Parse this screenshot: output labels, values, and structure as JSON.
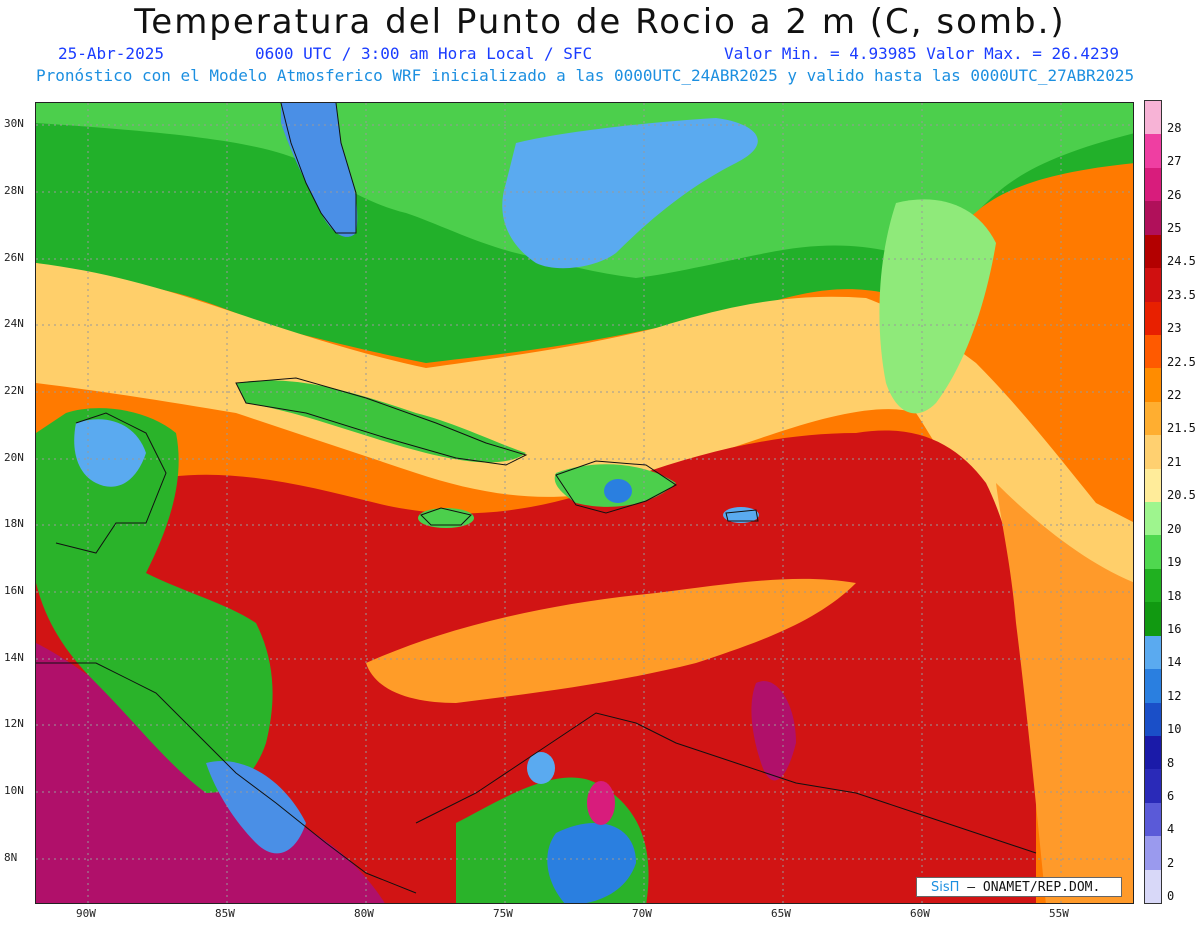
{
  "header": {
    "title": "Temperatura del Punto de Rocio a 2 m (C, somb.)",
    "date": "25-Abr-2025",
    "time": "0600 UTC / 3:00 am Hora Local / SFC",
    "minmax": "Valor Min. = 4.93985  Valor Max. = 26.4239",
    "model": "Pronóstico con el Modelo Atmosferico WRF inicializado a las 0000UTC_24ABR2025 y valido hasta las  0000UTC_27ABR2025"
  },
  "map": {
    "lat_ticks": [
      "30N",
      "28N",
      "26N",
      "24N",
      "22N",
      "20N",
      "18N",
      "16N",
      "14N",
      "12N",
      "10N",
      "8N"
    ],
    "lon_ticks": [
      "90W",
      "85W",
      "80W",
      "75W",
      "70W",
      "65W",
      "60W",
      "55W"
    ]
  },
  "colorbar": {
    "labels": [
      "28",
      "27",
      "26",
      "25",
      "24.5",
      "23.5",
      "23",
      "22.5",
      "22",
      "21.5",
      "21",
      "20.5",
      "20",
      "19",
      "18",
      "16",
      "14",
      "12",
      "10",
      "8",
      "6",
      "4",
      "2",
      "0"
    ],
    "colors": [
      "#f7b3d6",
      "#ef3ea2",
      "#d81c7c",
      "#b0105a",
      "#b30000",
      "#d01010",
      "#e82000",
      "#ff5a00",
      "#ff8c00",
      "#ffae30",
      "#ffd070",
      "#ffec9a",
      "#9ef58e",
      "#4fd84f",
      "#20b020",
      "#119911",
      "#5aaaf0",
      "#2a7fe0",
      "#1a4fc8",
      "#1a1aa8",
      "#2a2ab8",
      "#5a5ad8",
      "#9a9aee",
      "#d8d8f8"
    ]
  },
  "credit": {
    "logo": "SisΠ",
    "text": "– ONAMET/REP.DOM."
  }
}
